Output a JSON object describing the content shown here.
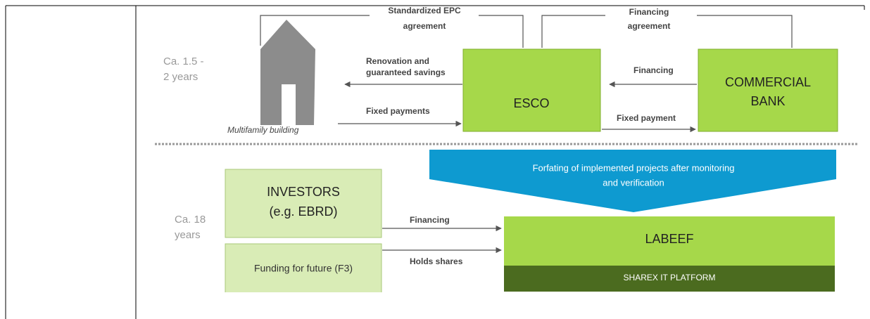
{
  "top_agreements": {
    "epc": [
      "Standardized EPC",
      "agreement"
    ],
    "financing": [
      "Financing",
      "agreement"
    ]
  },
  "phase1": {
    "duration": [
      "Ca. 1.5 -",
      "2 years"
    ],
    "building": "Multifamily building",
    "esco": "ESCO",
    "bank": [
      "COMMERCIAL",
      "BANK"
    ],
    "flows": {
      "renovation": [
        "Renovation and",
        "guaranteed savings"
      ],
      "fixed_payments": "Fixed payments",
      "financing": "Financing",
      "fixed_payment": "Fixed payment"
    }
  },
  "phase2": {
    "duration": [
      "Ca. 18",
      "years"
    ],
    "banner": [
      "Forfating of  implemented projects after monitoring",
      "and verification"
    ],
    "investors": [
      "INVESTORS",
      "(e.g. EBRD)"
    ],
    "funding": "Funding for future (F3)",
    "labeef": "LABEEF",
    "platform": "SHAREX IT PLATFORM",
    "flows": {
      "financing": "Financing",
      "holds_shares": "Holds shares"
    }
  }
}
